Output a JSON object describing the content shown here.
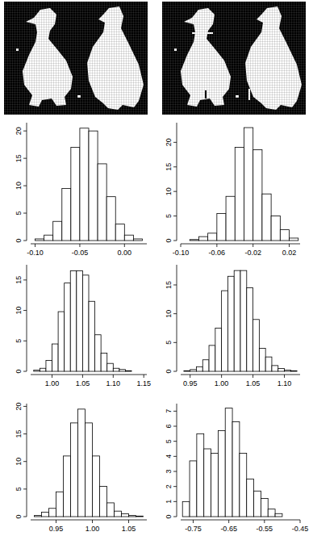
{
  "chart_data": [
    {
      "type": "histogram",
      "bins": [
        -0.1,
        -0.09,
        -0.08,
        -0.07,
        -0.06,
        -0.05,
        -0.04,
        -0.03,
        -0.02,
        -0.01,
        0.0,
        0.01,
        0.02
      ],
      "values": [
        0.3,
        1,
        3.5,
        9.5,
        17,
        20.5,
        20,
        14,
        8,
        3,
        1,
        0.3
      ],
      "color": "#ffffff",
      "xlim": [
        -0.105,
        0.025
      ],
      "ylim": [
        0,
        21.5
      ],
      "xticks": [
        {
          "value": -0.1,
          "label": "-0.10"
        },
        -0.05,
        {
          "value": 0,
          "label": "0.00"
        }
      ],
      "yticks": [
        0,
        5,
        10,
        15,
        20
      ]
    },
    {
      "type": "histogram",
      "bins": [
        -0.09,
        -0.08,
        -0.07,
        -0.06,
        -0.05,
        -0.04,
        -0.03,
        -0.02,
        -0.01,
        0.0,
        0.01,
        0.02,
        0.03
      ],
      "values": [
        0.2,
        0.8,
        1.5,
        5.5,
        9,
        19,
        23,
        18.5,
        9.5,
        5,
        2.2,
        0.5
      ],
      "color": "#ffffff",
      "xlim": [
        -0.1,
        0.032
      ],
      "ylim": [
        0,
        24
      ],
      "xticks": [
        {
          "value": -0.1,
          "label": "-0.10"
        },
        -0.06,
        -0.02,
        0.02
      ],
      "yticks": [
        0,
        5,
        10,
        15,
        20
      ]
    },
    {
      "type": "histogram",
      "bins": [
        0.97,
        0.98,
        0.99,
        1.0,
        1.01,
        1.02,
        1.03,
        1.04,
        1.05,
        1.06,
        1.07,
        1.08,
        1.09,
        1.1,
        1.11,
        1.12,
        1.13
      ],
      "values": [
        0.2,
        0.5,
        1.8,
        4.5,
        9.8,
        14.5,
        16.5,
        16.5,
        15.8,
        11.5,
        6,
        3,
        1.3,
        0.5,
        0.3,
        0.1
      ],
      "color": "#ffffff",
      "xlim": [
        0.965,
        1.155
      ],
      "ylim": [
        0,
        17.5
      ],
      "xticks": [
        {
          "value": 1,
          "label": "1.00"
        },
        1.05,
        {
          "value": 1.1,
          "label": "1.10"
        },
        1.15
      ],
      "yticks": [
        0,
        5,
        10,
        15
      ]
    },
    {
      "type": "histogram",
      "bins": [
        0.94,
        0.95,
        0.96,
        0.97,
        0.98,
        0.99,
        1.0,
        1.01,
        1.02,
        1.03,
        1.04,
        1.05,
        1.06,
        1.07,
        1.08,
        1.09,
        1.1,
        1.11,
        1.12
      ],
      "values": [
        0.1,
        0.3,
        0.8,
        2,
        4.5,
        7.5,
        14,
        16.5,
        17.5,
        17.5,
        14.5,
        9,
        4,
        2.5,
        1,
        0.5,
        0.2,
        0.1
      ],
      "color": "#ffffff",
      "xlim": [
        0.935,
        1.125
      ],
      "ylim": [
        0,
        18.5
      ],
      "xticks": [
        0.95,
        {
          "value": 1,
          "label": "1.00"
        },
        1.05,
        {
          "value": 1.1,
          "label": "1.10"
        }
      ],
      "yticks": [
        0,
        5,
        10,
        15
      ]
    },
    {
      "type": "histogram",
      "bins": [
        0.92,
        0.93,
        0.94,
        0.95,
        0.96,
        0.97,
        0.98,
        0.99,
        1.0,
        1.01,
        1.02,
        1.03,
        1.04,
        1.05,
        1.06,
        1.07
      ],
      "values": [
        0.2,
        0.8,
        1.5,
        4.5,
        11,
        17,
        19.5,
        17,
        11,
        5.5,
        2.5,
        1,
        0.5,
        0.2,
        0.1
      ],
      "color": "#ffffff",
      "xlim": [
        0.915,
        1.075
      ],
      "ylim": [
        0,
        20.5
      ],
      "xticks": [
        0.95,
        {
          "value": 1,
          "label": "1.00"
        },
        1.05
      ],
      "yticks": [
        0,
        5,
        10,
        15,
        20
      ]
    },
    {
      "type": "histogram",
      "bins": [
        -0.78,
        -0.76,
        -0.74,
        -0.72,
        -0.7,
        -0.68,
        -0.66,
        -0.64,
        -0.62,
        -0.6,
        -0.58,
        -0.56,
        -0.54,
        -0.52,
        -0.5
      ],
      "values": [
        1,
        3.7,
        5.5,
        4.5,
        4.2,
        5.7,
        7.2,
        6.3,
        4.2,
        2.5,
        1.7,
        1.2,
        0.5,
        0.2
      ],
      "color": "#ffffff",
      "xlim": [
        -0.785,
        -0.45
      ],
      "ylim": [
        0,
        7.5
      ],
      "xticks": [
        -0.75,
        -0.65,
        -0.55,
        -0.45
      ],
      "yticks": [
        0,
        1,
        2,
        3,
        4,
        5,
        6,
        7
      ]
    }
  ]
}
